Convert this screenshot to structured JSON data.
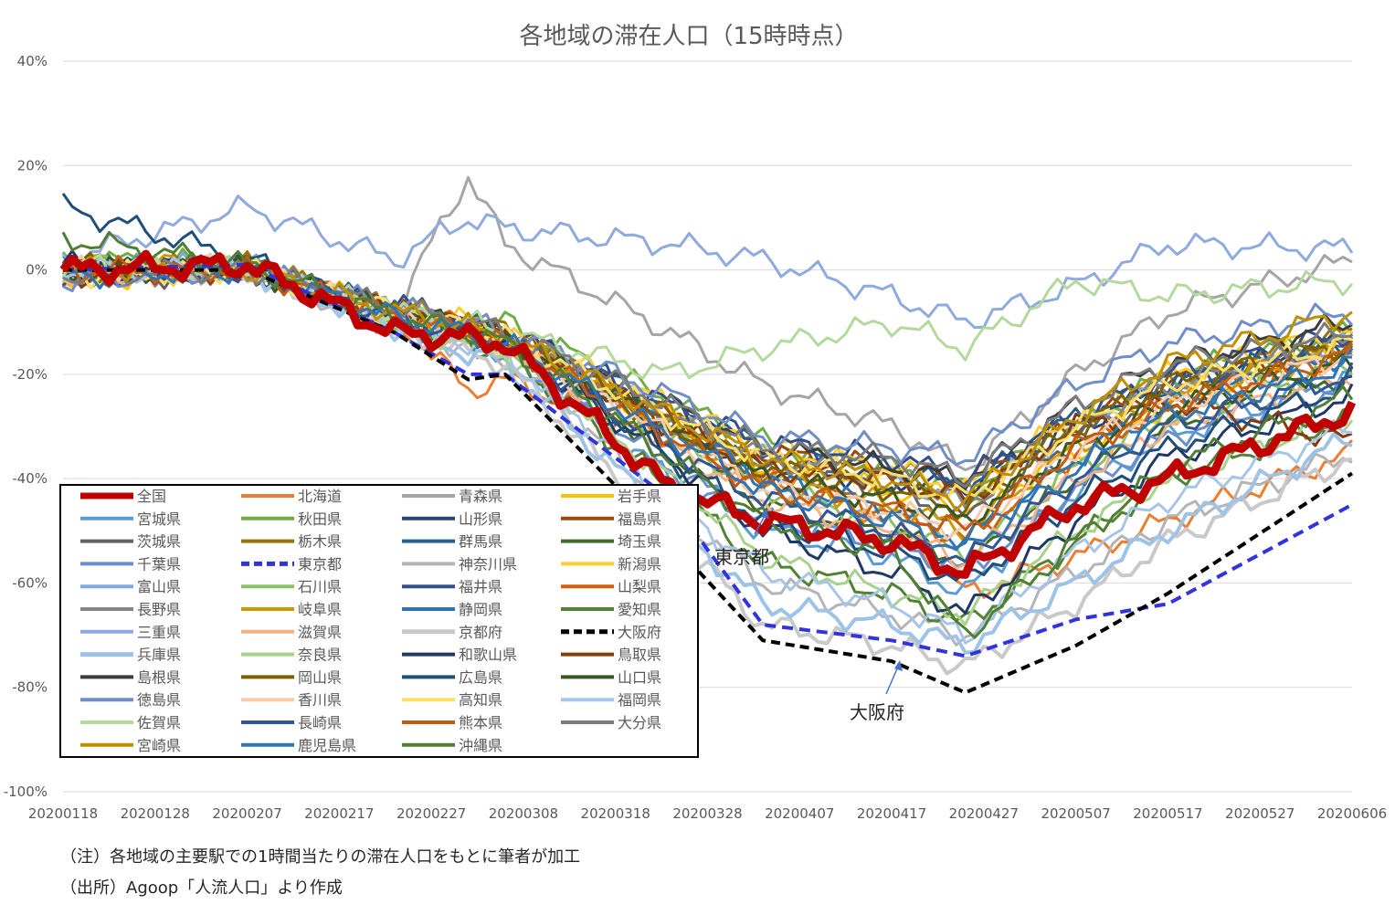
{
  "chart_data": {
    "type": "line",
    "title": "各地域の滞在人口（15時時点）",
    "xlabel": "",
    "ylabel": "",
    "ylim": [
      -100,
      40
    ],
    "y_ticks": [
      40,
      20,
      0,
      -20,
      -40,
      -60,
      -80,
      -100
    ],
    "y_tick_labels": [
      "40%",
      "20%",
      "0%",
      "-20%",
      "-40%",
      "-60%",
      "-80%",
      "-100%"
    ],
    "x_tick_labels": [
      "20200118",
      "20200128",
      "20200207",
      "20200217",
      "20200227",
      "20200308",
      "20200318",
      "20200328",
      "20200407",
      "20200417",
      "20200427",
      "20200507",
      "20200517",
      "20200527",
      "20200606"
    ],
    "grid": "horizontal",
    "legend_position": "bottom-left",
    "legend_columns": 4,
    "annotations": [
      {
        "text": "東京都",
        "target": "東京都"
      },
      {
        "text": "大阪府",
        "target": "大阪府"
      }
    ],
    "anchor_days": [
      0,
      20,
      36,
      44,
      48,
      66,
      76,
      90,
      98,
      110,
      120,
      140
    ],
    "series": [
      {
        "name": "全国",
        "color": "#C00000",
        "width": 9,
        "dash": "",
        "values": [
          0,
          1,
          -12,
          -13,
          -14,
          -42,
          -48,
          -52,
          -58,
          -45,
          -40,
          -27
        ]
      },
      {
        "name": "北海道",
        "color": "#ED7D31",
        "width": 3,
        "dash": "",
        "values": [
          -1,
          0,
          -9,
          -23,
          -21,
          -33,
          -40,
          -48,
          -62,
          -55,
          -48,
          -35
        ]
      },
      {
        "name": "青森県",
        "color": "#A5A5A5",
        "width": 3,
        "dash": "",
        "values": [
          -1,
          0,
          -8,
          18,
          5,
          -12,
          -22,
          -30,
          -38,
          -20,
          -8,
          2
        ]
      },
      {
        "name": "岩手県",
        "color": "#FFC000",
        "width": 3,
        "dash": "",
        "values": [
          -2,
          0,
          -7,
          -12,
          -15,
          -30,
          -38,
          -42,
          -46,
          -35,
          -26,
          -15
        ]
      },
      {
        "name": "宮城県",
        "color": "#5B9BD5",
        "width": 3,
        "dash": "",
        "values": [
          0,
          1,
          -10,
          -14,
          -16,
          -40,
          -50,
          -55,
          -62,
          -42,
          -32,
          -20
        ]
      },
      {
        "name": "秋田県",
        "color": "#70AD47",
        "width": 3,
        "dash": "",
        "values": [
          2,
          1,
          -9,
          -12,
          -10,
          -25,
          -33,
          -38,
          -42,
          -30,
          -20,
          -12
        ]
      },
      {
        "name": "山形県",
        "color": "#264478",
        "width": 3,
        "dash": "",
        "values": [
          1,
          0,
          -8,
          -12,
          -14,
          -30,
          -38,
          -40,
          -42,
          -30,
          -22,
          -13
        ]
      },
      {
        "name": "福島県",
        "color": "#9E480E",
        "width": 3,
        "dash": "",
        "values": [
          -1,
          0,
          -8,
          -11,
          -13,
          -28,
          -35,
          -38,
          -40,
          -30,
          -22,
          -15
        ]
      },
      {
        "name": "茨城県",
        "color": "#636363",
        "width": 3,
        "dash": "",
        "values": [
          -2,
          0,
          -8,
          -11,
          -13,
          -30,
          -38,
          -42,
          -48,
          -32,
          -24,
          -14
        ]
      },
      {
        "name": "栃木県",
        "color": "#997300",
        "width": 3,
        "dash": "",
        "values": [
          0,
          1,
          -8,
          -10,
          -12,
          -28,
          -35,
          -40,
          -44,
          -30,
          -22,
          -12
        ]
      },
      {
        "name": "群馬県",
        "color": "#255E91",
        "width": 3,
        "dash": "",
        "values": [
          1,
          0,
          -7,
          -10,
          -12,
          -26,
          -34,
          -38,
          -42,
          -28,
          -22,
          -14
        ]
      },
      {
        "name": "埼玉県",
        "color": "#43682B",
        "width": 3,
        "dash": "",
        "values": [
          0,
          0,
          -9,
          -12,
          -14,
          -35,
          -45,
          -50,
          -56,
          -40,
          -30,
          -20
        ]
      },
      {
        "name": "千葉県",
        "color": "#698ED0",
        "width": 3,
        "dash": "",
        "values": [
          -1,
          0,
          -10,
          -14,
          -16,
          -38,
          -48,
          -52,
          -58,
          -42,
          -32,
          -22
        ]
      },
      {
        "name": "東京都",
        "color": "#3333DD",
        "width": 4,
        "dash": "12 7",
        "values": [
          0,
          1,
          -12,
          -20,
          -20,
          -44,
          -68,
          -71,
          -74,
          -67,
          -64,
          -45
        ]
      },
      {
        "name": "神奈川県",
        "color": "#B4B4B4",
        "width": 3,
        "dash": "",
        "values": [
          0,
          0,
          -11,
          -15,
          -17,
          -45,
          -60,
          -66,
          -70,
          -58,
          -48,
          -35
        ]
      },
      {
        "name": "新潟県",
        "color": "#FFCD33",
        "width": 3,
        "dash": "",
        "values": [
          -1,
          0,
          -8,
          -10,
          -12,
          -26,
          -34,
          -38,
          -42,
          -28,
          -20,
          -12
        ]
      },
      {
        "name": "富山県",
        "color": "#7FABDC",
        "width": 3,
        "dash": "",
        "values": [
          0,
          1,
          -8,
          -11,
          -13,
          -28,
          -36,
          -40,
          -44,
          -30,
          -22,
          -14
        ]
      },
      {
        "name": "石川県",
        "color": "#8CC168",
        "width": 3,
        "dash": "",
        "values": [
          1,
          0,
          -9,
          -12,
          -14,
          -32,
          -42,
          -48,
          -55,
          -38,
          -28,
          -18
        ]
      },
      {
        "name": "福井県",
        "color": "#344E8A",
        "width": 3,
        "dash": "",
        "values": [
          -1,
          0,
          -7,
          -10,
          -12,
          -26,
          -33,
          -36,
          -40,
          -28,
          -20,
          -12
        ]
      },
      {
        "name": "山梨県",
        "color": "#D26012",
        "width": 3,
        "dash": "",
        "values": [
          0,
          0,
          -8,
          -11,
          -13,
          -30,
          -40,
          -46,
          -52,
          -35,
          -26,
          -16
        ]
      },
      {
        "name": "長野県",
        "color": "#848484",
        "width": 3,
        "dash": "",
        "values": [
          -1,
          0,
          -8,
          -11,
          -13,
          -28,
          -36,
          -40,
          -45,
          -30,
          -22,
          -14
        ]
      },
      {
        "name": "岐阜県",
        "color": "#CC9A00",
        "width": 3,
        "dash": "",
        "values": [
          1,
          1,
          -8,
          -10,
          -12,
          -30,
          -40,
          -45,
          -50,
          -34,
          -25,
          -15
        ]
      },
      {
        "name": "静岡県",
        "color": "#2E75B6",
        "width": 3,
        "dash": "",
        "values": [
          0,
          0,
          -8,
          -11,
          -13,
          -30,
          -40,
          -46,
          -52,
          -36,
          -26,
          -16
        ]
      },
      {
        "name": "愛知県",
        "color": "#548235",
        "width": 3,
        "dash": "",
        "values": [
          0,
          1,
          -10,
          -14,
          -16,
          -42,
          -56,
          -62,
          -68,
          -52,
          -40,
          -28
        ]
      },
      {
        "name": "三重県",
        "color": "#8FAADC",
        "width": 3,
        "dash": "",
        "values": [
          2,
          12,
          2,
          10,
          8,
          5,
          2,
          -5,
          -10,
          -3,
          5,
          4
        ]
      },
      {
        "name": "滋賀県",
        "color": "#F4B183",
        "width": 3,
        "dash": "",
        "values": [
          -1,
          0,
          -9,
          -12,
          -14,
          -34,
          -44,
          -50,
          -56,
          -40,
          -30,
          -20
        ]
      },
      {
        "name": "京都府",
        "color": "#C9C9C9",
        "width": 4,
        "dash": "",
        "values": [
          0,
          0,
          -11,
          -16,
          -18,
          -50,
          -68,
          -72,
          -76,
          -64,
          -52,
          -36
        ]
      },
      {
        "name": "大阪府",
        "color": "#000000",
        "width": 4,
        "dash": "10 6",
        "values": [
          0,
          0,
          -12,
          -21,
          -20,
          -52,
          -71,
          -75,
          -81,
          -72,
          -62,
          -39
        ]
      },
      {
        "name": "兵庫県",
        "color": "#9DC3E6",
        "width": 4,
        "dash": "",
        "values": [
          0,
          0,
          -11,
          -16,
          -18,
          -48,
          -64,
          -68,
          -72,
          -60,
          -50,
          -32
        ]
      },
      {
        "name": "奈良県",
        "color": "#A9D18E",
        "width": 3,
        "dash": "",
        "values": [
          0,
          1,
          -10,
          -14,
          -16,
          -40,
          -55,
          -62,
          -66,
          -50,
          -40,
          -28
        ]
      },
      {
        "name": "和歌山県",
        "color": "#203864",
        "width": 3,
        "dash": "",
        "values": [
          1,
          0,
          -9,
          -12,
          -14,
          -36,
          -50,
          -58,
          -66,
          -48,
          -36,
          -24
        ]
      },
      {
        "name": "鳥取県",
        "color": "#843C0C",
        "width": 3,
        "dash": "",
        "values": [
          -1,
          0,
          -8,
          -11,
          -13,
          -30,
          -38,
          -40,
          -44,
          -30,
          -25,
          -33
        ]
      },
      {
        "name": "島根県",
        "color": "#3B3B3B",
        "width": 3,
        "dash": "",
        "values": [
          0,
          0,
          -7,
          -10,
          -12,
          -26,
          -34,
          -38,
          -40,
          -26,
          -18,
          -10
        ]
      },
      {
        "name": "岡山県",
        "color": "#7F6000",
        "width": 3,
        "dash": "",
        "values": [
          1,
          0,
          -8,
          -11,
          -13,
          -30,
          -38,
          -42,
          -46,
          -30,
          -22,
          -14
        ]
      },
      {
        "name": "広島県",
        "color": "#1F4E79",
        "width": 3,
        "dash": "",
        "values": [
          12,
          2,
          -9,
          -12,
          -14,
          -36,
          -48,
          -54,
          -60,
          -44,
          -34,
          -22
        ]
      },
      {
        "name": "山口県",
        "color": "#385723",
        "width": 3,
        "dash": "",
        "values": [
          0,
          0,
          -8,
          -11,
          -13,
          -30,
          -40,
          -44,
          -48,
          -34,
          -26,
          -18
        ]
      },
      {
        "name": "徳島県",
        "color": "#6F8EC8",
        "width": 3,
        "dash": "",
        "values": [
          -2,
          0,
          -7,
          -10,
          -12,
          -24,
          -32,
          -34,
          -36,
          -22,
          -14,
          -8
        ]
      },
      {
        "name": "香川県",
        "color": "#F8CBAD",
        "width": 3,
        "dash": "",
        "values": [
          0,
          1,
          -9,
          -12,
          -14,
          -32,
          -42,
          -46,
          -50,
          -34,
          -26,
          -16
        ]
      },
      {
        "name": "高知県",
        "color": "#FFE066",
        "width": 3,
        "dash": "",
        "values": [
          -1,
          0,
          -8,
          -11,
          -13,
          -28,
          -36,
          -40,
          -44,
          -30,
          -22,
          -14
        ]
      },
      {
        "name": "福岡県",
        "color": "#A7C5E8",
        "width": 3,
        "dash": "",
        "values": [
          0,
          0,
          -10,
          -14,
          -16,
          -44,
          -58,
          -64,
          -70,
          -54,
          -44,
          -30
        ]
      },
      {
        "name": "佐賀県",
        "color": "#B5D99C",
        "width": 3,
        "dash": "",
        "values": [
          1,
          0,
          -8,
          -10,
          -12,
          -20,
          -15,
          -10,
          -15,
          -2,
          -5,
          -2
        ]
      },
      {
        "name": "長崎県",
        "color": "#2F5597",
        "width": 3,
        "dash": "",
        "values": [
          0,
          0,
          -9,
          -12,
          -14,
          -34,
          -44,
          -50,
          -56,
          -40,
          -30,
          -20
        ]
      },
      {
        "name": "熊本県",
        "color": "#C55A11",
        "width": 3,
        "dash": "",
        "values": [
          0,
          0,
          -9,
          -12,
          -14,
          -32,
          -42,
          -46,
          -50,
          -34,
          -26,
          -16
        ]
      },
      {
        "name": "大分県",
        "color": "#7B7B7B",
        "width": 3,
        "dash": "",
        "values": [
          -1,
          0,
          -7,
          -10,
          -12,
          -26,
          -34,
          -36,
          -40,
          -26,
          -18,
          -12
        ]
      },
      {
        "name": "宮崎県",
        "color": "#BF8F00",
        "width": 3,
        "dash": "",
        "values": [
          0,
          0,
          -8,
          -11,
          -13,
          -28,
          -36,
          -40,
          -44,
          -28,
          -18,
          -8
        ]
      },
      {
        "name": "鹿児島県",
        "color": "#2E75B6",
        "width": 3,
        "dash": "",
        "values": [
          -1,
          0,
          -9,
          -12,
          -14,
          -32,
          -42,
          -48,
          -54,
          -38,
          -28,
          -18
        ]
      },
      {
        "name": "沖縄県",
        "color": "#507E32",
        "width": 3,
        "dash": "",
        "values": [
          6,
          1,
          -9,
          -12,
          -14,
          -36,
          -48,
          -54,
          -70,
          -52,
          -38,
          -24
        ]
      }
    ]
  },
  "notes": {
    "note1": "（注）各地域の主要駅での1時間当たりの滞在人口をもとに筆者が加工",
    "note2": "（出所）Agoop「人流人口」より作成"
  }
}
